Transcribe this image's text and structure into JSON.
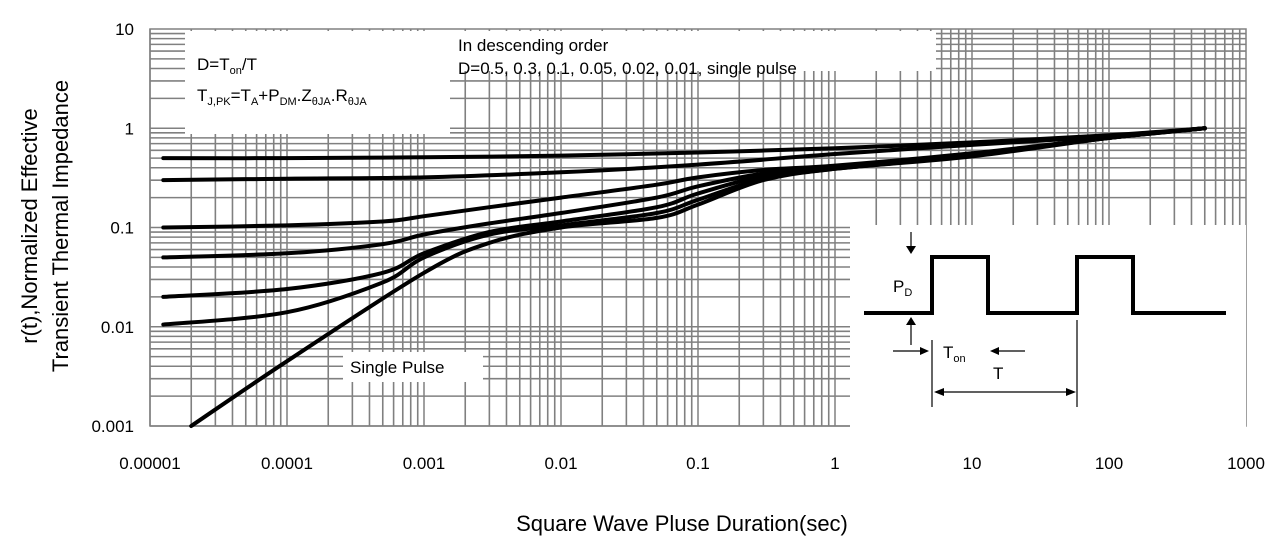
{
  "chart_data": {
    "type": "line",
    "title": "",
    "xlabel": "Square Wave Pluse Duration(sec)",
    "ylabel_line1": "r(t),Normalized Effective",
    "ylabel_line2": "Transient Thermal Impedance",
    "xscale": "log",
    "yscale": "log",
    "xlim": [
      1e-05,
      1000
    ],
    "ylim": [
      0.001,
      10
    ],
    "grid": true,
    "x_ticks": [
      "0.00001",
      "0.0001",
      "0.001",
      "0.01",
      "0.1",
      "1",
      "10",
      "100",
      "1000"
    ],
    "y_ticks": [
      "10",
      "1",
      "0.1",
      "0.01",
      "0.001"
    ],
    "annotations": {
      "d_def": {
        "main": "D=T",
        "sub": "on",
        "tail": "/T"
      },
      "tj_formula": [
        {
          "t": "T",
          "s": ""
        },
        {
          "t": "",
          "s": "J,PK"
        },
        {
          "t": "=T",
          "s": ""
        },
        {
          "t": "",
          "s": "A"
        },
        {
          "t": "+P",
          "s": ""
        },
        {
          "t": "",
          "s": "DM"
        },
        {
          "t": ".Z",
          "s": ""
        },
        {
          "t": "",
          "s": "θJA"
        },
        {
          "t": ".R",
          "s": ""
        },
        {
          "t": "",
          "s": "θJA"
        }
      ],
      "order_line1": "In descending order",
      "order_line2": "D=0.5, 0.3, 0.1, 0.05, 0.02, 0.01, single pulse",
      "single_pulse": "Single Pulse"
    },
    "inset": {
      "pd_label": "P",
      "pd_sub": "D",
      "ton_label": "T",
      "ton_sub": "on",
      "t_label": "T"
    },
    "series": [
      {
        "x": [
          1.25e-05,
          0.0001,
          0.001,
          0.01,
          0.1,
          1,
          10,
          100,
          500
        ],
        "y": [
          0.5,
          0.5,
          0.51,
          0.53,
          0.57,
          0.63,
          0.72,
          0.85,
          1.0
        ]
      },
      {
        "x": [
          1.25e-05,
          0.0001,
          0.001,
          0.01,
          0.1,
          1,
          10,
          100,
          500
        ],
        "y": [
          0.3,
          0.31,
          0.32,
          0.36,
          0.43,
          0.55,
          0.68,
          0.83,
          1.0
        ]
      },
      {
        "x": [
          1.25e-05,
          0.0001,
          0.0005,
          0.001,
          0.003,
          0.01,
          0.05,
          0.1,
          0.3,
          1,
          10,
          100,
          500
        ],
        "y": [
          0.1,
          0.105,
          0.115,
          0.13,
          0.16,
          0.2,
          0.27,
          0.32,
          0.38,
          0.42,
          0.56,
          0.8,
          1.0
        ]
      },
      {
        "x": [
          1.25e-05,
          0.0001,
          0.0005,
          0.001,
          0.003,
          0.01,
          0.05,
          0.1,
          0.3,
          1,
          10,
          100,
          500
        ],
        "y": [
          0.05,
          0.055,
          0.068,
          0.085,
          0.11,
          0.14,
          0.2,
          0.26,
          0.35,
          0.41,
          0.55,
          0.8,
          1.0
        ]
      },
      {
        "x": [
          1.25e-05,
          0.0001,
          0.0005,
          0.001,
          0.003,
          0.01,
          0.05,
          0.1,
          0.3,
          1,
          10,
          100,
          500
        ],
        "y": [
          0.02,
          0.024,
          0.035,
          0.055,
          0.09,
          0.115,
          0.16,
          0.22,
          0.33,
          0.4,
          0.54,
          0.8,
          1.0
        ]
      },
      {
        "x": [
          1.25e-05,
          0.0001,
          0.0005,
          0.001,
          0.003,
          0.01,
          0.05,
          0.1,
          0.3,
          1,
          10,
          100,
          500
        ],
        "y": [
          0.0105,
          0.014,
          0.028,
          0.05,
          0.085,
          0.105,
          0.14,
          0.19,
          0.31,
          0.39,
          0.53,
          0.8,
          1.0
        ]
      },
      {
        "x": [
          2e-05,
          0.0001,
          0.001,
          0.003,
          0.01,
          0.05,
          0.1,
          0.3,
          1,
          10,
          100,
          500
        ],
        "y": [
          0.001,
          0.0045,
          0.035,
          0.07,
          0.1,
          0.125,
          0.17,
          0.3,
          0.39,
          0.52,
          0.8,
          1.0
        ]
      }
    ]
  }
}
